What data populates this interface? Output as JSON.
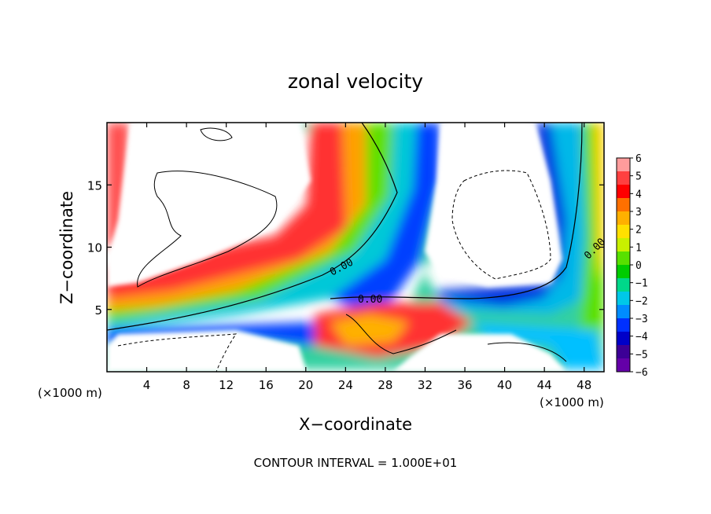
{
  "chart_data": {
    "type": "heatmap",
    "title": "zonal velocity",
    "xlabel": "X−coordinate",
    "ylabel": "Z−coordinate",
    "x_unit_left": "(×1000 m)",
    "x_unit_right": "(×1000 m)",
    "xlim": [
      0,
      50
    ],
    "ylim": [
      0,
      20
    ],
    "x_ticks": [
      4,
      8,
      12,
      16,
      20,
      24,
      28,
      32,
      36,
      40,
      44,
      48
    ],
    "y_ticks": [
      5,
      10,
      15
    ],
    "colorbar": {
      "ticks": [
        "6",
        "5",
        "4",
        "3",
        "2",
        "1",
        "0",
        "−1",
        "−2",
        "−3",
        "−4",
        "−5",
        "−6"
      ],
      "range": [
        -6,
        6
      ],
      "colors": [
        "#ff9c9c",
        "#ff4040",
        "#ff0000",
        "#ff7000",
        "#ffb000",
        "#ffe000",
        "#c8f000",
        "#58e000",
        "#00cc00",
        "#00d88a",
        "#00c8e8",
        "#008cff",
        "#0030ff",
        "#0000c8",
        "#3c0096",
        "#6400a8"
      ]
    },
    "contour_labels": [
      "0.00",
      "0.00",
      "0.00"
    ],
    "footer": "CONTOUR INTERVAL = 1.000E+01"
  }
}
